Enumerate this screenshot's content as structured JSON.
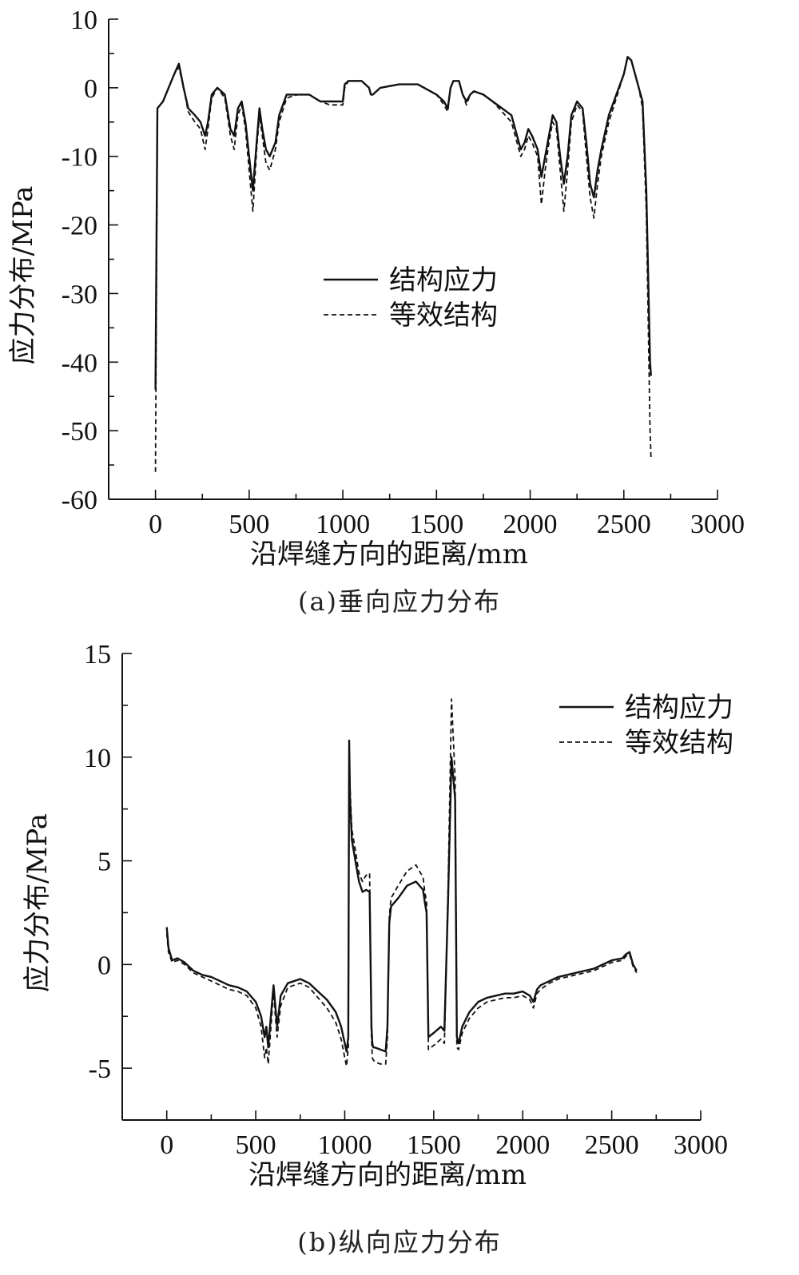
{
  "chart_data": [
    {
      "type": "line",
      "caption": "(a)垂向应力分布",
      "xlabel": "沿焊缝方向的距离/mm",
      "ylabel": "应力分布/MPa",
      "xlim": [
        -250,
        3000
      ],
      "ylim": [
        -60,
        10
      ],
      "xticks": [
        0,
        500,
        1000,
        1500,
        2000,
        2500,
        3000
      ],
      "yticks": [
        10,
        0,
        -10,
        -20,
        -30,
        -40,
        -50,
        -60
      ],
      "legend_position": "center",
      "series": [
        {
          "name": "结构应力",
          "style": "solid",
          "x": [
            0,
            10,
            40,
            70,
            100,
            125,
            150,
            175,
            210,
            240,
            265,
            280,
            300,
            330,
            370,
            400,
            420,
            440,
            460,
            480,
            500,
            520,
            540,
            555,
            570,
            590,
            610,
            640,
            660,
            700,
            760,
            820,
            880,
            930,
            960,
            1000,
            1010,
            1030,
            1060,
            1100,
            1140,
            1150,
            1160,
            1200,
            1300,
            1400,
            1500,
            1540,
            1560,
            1575,
            1590,
            1620,
            1640,
            1660,
            1680,
            1700,
            1750,
            1800,
            1850,
            1900,
            1950,
            1970,
            1990,
            2010,
            2040,
            2060,
            2080,
            2100,
            2120,
            2140,
            2160,
            2180,
            2200,
            2220,
            2250,
            2280,
            2300,
            2320,
            2340,
            2360,
            2380,
            2420,
            2460,
            2500,
            2520,
            2540,
            2560,
            2580,
            2600,
            2620,
            2640,
            2645
          ],
          "y": [
            -44,
            -3,
            -2,
            0,
            2,
            3.5,
            0,
            -3,
            -4,
            -5,
            -7,
            -5,
            -1,
            0,
            -1,
            -6,
            -7,
            -3,
            -2,
            -5,
            -10,
            -15,
            -8,
            -3,
            -6,
            -9,
            -10,
            -8,
            -4,
            -1,
            -1,
            -1,
            -2,
            -2,
            -2,
            -2,
            0.5,
            1,
            1,
            1,
            0,
            -1,
            -1,
            0,
            0.5,
            0.5,
            -1,
            -2,
            -3,
            0,
            1,
            1,
            -1,
            -2,
            -1,
            -0.5,
            -1,
            -2,
            -3,
            -4,
            -9,
            -8,
            -6,
            -7,
            -9,
            -13,
            -10,
            -7,
            -4,
            -5,
            -10,
            -14,
            -10,
            -4,
            -2,
            -3,
            -8,
            -14,
            -16,
            -12,
            -9,
            -4,
            -1,
            2,
            4.5,
            4,
            2,
            0,
            -2,
            -15,
            -40,
            -42
          ]
        },
        {
          "name": "等效结构",
          "style": "dashed",
          "x": [
            0,
            10,
            40,
            70,
            100,
            125,
            150,
            175,
            210,
            240,
            265,
            280,
            300,
            330,
            370,
            400,
            420,
            440,
            460,
            480,
            500,
            520,
            540,
            555,
            570,
            590,
            610,
            640,
            660,
            700,
            760,
            820,
            880,
            930,
            960,
            1000,
            1010,
            1030,
            1060,
            1100,
            1140,
            1150,
            1160,
            1200,
            1300,
            1400,
            1500,
            1540,
            1560,
            1575,
            1590,
            1620,
            1640,
            1660,
            1680,
            1700,
            1750,
            1800,
            1850,
            1900,
            1950,
            1970,
            1990,
            2010,
            2040,
            2060,
            2080,
            2100,
            2120,
            2140,
            2160,
            2180,
            2200,
            2220,
            2250,
            2280,
            2300,
            2320,
            2340,
            2360,
            2380,
            2420,
            2460,
            2500,
            2520,
            2540,
            2560,
            2580,
            2600,
            2620,
            2640,
            2645
          ],
          "y": [
            -56,
            -3,
            -2,
            0,
            2,
            3,
            0,
            -3.5,
            -5,
            -6,
            -9,
            -6,
            -1.5,
            0,
            -1.5,
            -7,
            -9,
            -4,
            -2.5,
            -6,
            -12,
            -18,
            -9,
            -4,
            -7,
            -11,
            -12,
            -9,
            -5,
            -1.5,
            -1,
            -1,
            -2,
            -2.5,
            -2.5,
            -2.5,
            0,
            1,
            1,
            1,
            0,
            -1,
            -1,
            0,
            0.5,
            0.5,
            -1,
            -2.5,
            -3.5,
            0,
            1,
            1,
            -1,
            -2.5,
            -1,
            -0.5,
            -1,
            -2,
            -3.5,
            -5,
            -10,
            -9,
            -7,
            -8,
            -10,
            -17,
            -12,
            -8,
            -5,
            -6,
            -12,
            -18,
            -12,
            -5,
            -2.5,
            -3.5,
            -10,
            -16,
            -19,
            -14,
            -10,
            -5,
            -1.5,
            2,
            4.5,
            4,
            2,
            0,
            -3,
            -18,
            -50,
            -54
          ]
        }
      ]
    },
    {
      "type": "line",
      "caption": "(b)纵向应力分布",
      "xlabel": "沿焊缝方向的距离/mm",
      "ylabel": "应力分布/MPa",
      "xlim": [
        -250,
        3000
      ],
      "ylim": [
        -7.5,
        15
      ],
      "xticks": [
        0,
        500,
        1000,
        1500,
        2000,
        2500,
        3000
      ],
      "yticks": [
        15,
        10,
        5,
        0,
        -5
      ],
      "legend_position": "top-right",
      "series": [
        {
          "name": "结构应力",
          "style": "solid",
          "x": [
            0,
            10,
            30,
            60,
            100,
            150,
            200,
            250,
            300,
            350,
            400,
            450,
            500,
            530,
            550,
            560,
            570,
            590,
            600,
            610,
            620,
            640,
            680,
            750,
            800,
            850,
            900,
            950,
            980,
            1000,
            1010,
            1020,
            1025,
            1030,
            1040,
            1060,
            1080,
            1100,
            1120,
            1140,
            1150,
            1155,
            1160,
            1170,
            1200,
            1230,
            1240,
            1250,
            1260,
            1300,
            1350,
            1400,
            1440,
            1450,
            1460,
            1470,
            1500,
            1540,
            1560,
            1580,
            1600,
            1620,
            1630,
            1640,
            1660,
            1700,
            1750,
            1800,
            1850,
            1900,
            1950,
            2000,
            2040,
            2060,
            2080,
            2100,
            2150,
            2200,
            2300,
            2400,
            2500,
            2560,
            2580,
            2600,
            2620,
            2640
          ],
          "y": [
            1.8,
            0.8,
            0.2,
            0.3,
            0.1,
            -0.3,
            -0.5,
            -0.6,
            -0.8,
            -1,
            -1.1,
            -1.3,
            -1.8,
            -2.5,
            -3.5,
            -3,
            -4,
            -2,
            -1,
            -2,
            -3,
            -1.5,
            -0.9,
            -0.7,
            -0.9,
            -1.3,
            -1.7,
            -2.3,
            -3,
            -3.8,
            -4.2,
            -3.5,
            10.8,
            8,
            6,
            5,
            4,
            3.5,
            3.6,
            3.5,
            -3,
            -3.8,
            -4,
            -4,
            -4.1,
            -4.2,
            -3,
            2,
            2.8,
            3.2,
            3.8,
            4,
            3.6,
            3,
            2.5,
            -3.5,
            -3.3,
            -3,
            -3.2,
            3,
            10,
            8,
            -3.5,
            -3.8,
            -3,
            -2.3,
            -1.8,
            -1.6,
            -1.5,
            -1.4,
            -1.4,
            -1.3,
            -1.5,
            -1.8,
            -1.2,
            -1,
            -0.8,
            -0.6,
            -0.4,
            -0.2,
            0.2,
            0.3,
            0.5,
            0.6,
            0,
            -0.3
          ]
        },
        {
          "name": "等效结构",
          "style": "dashed",
          "x": [
            0,
            10,
            30,
            60,
            100,
            150,
            200,
            250,
            300,
            350,
            400,
            450,
            500,
            530,
            550,
            560,
            570,
            590,
            600,
            610,
            620,
            640,
            680,
            750,
            800,
            850,
            900,
            950,
            980,
            1000,
            1010,
            1020,
            1025,
            1030,
            1040,
            1060,
            1080,
            1100,
            1120,
            1140,
            1150,
            1155,
            1160,
            1170,
            1200,
            1230,
            1240,
            1250,
            1260,
            1300,
            1350,
            1400,
            1440,
            1450,
            1460,
            1470,
            1500,
            1540,
            1560,
            1580,
            1600,
            1620,
            1630,
            1640,
            1660,
            1700,
            1750,
            1800,
            1850,
            1900,
            1950,
            2000,
            2040,
            2060,
            2080,
            2100,
            2150,
            2200,
            2300,
            2400,
            2500,
            2560,
            2580,
            2600,
            2620,
            2640
          ],
          "y": [
            1.5,
            0.6,
            0.1,
            0.2,
            0,
            -0.4,
            -0.6,
            -0.8,
            -1,
            -1.2,
            -1.3,
            -1.5,
            -2.1,
            -3,
            -4.5,
            -4,
            -4.8,
            -2.5,
            -1.2,
            -2.5,
            -3.5,
            -2,
            -1.1,
            -0.9,
            -1.1,
            -1.6,
            -2.1,
            -2.8,
            -3.6,
            -4.5,
            -4.9,
            -4,
            9.5,
            8.5,
            6.5,
            5.5,
            4.4,
            4,
            4.3,
            4.4,
            -3.5,
            -4.5,
            -4.6,
            -4.7,
            -4.8,
            -4.8,
            -3.5,
            2.3,
            3.2,
            3.8,
            4.5,
            4.8,
            4.2,
            3.5,
            3,
            -4.1,
            -3.9,
            -3.6,
            -3.8,
            3.5,
            12.8,
            9,
            -4,
            -4.1,
            -3.3,
            -2.6,
            -2.1,
            -1.8,
            -1.7,
            -1.6,
            -1.6,
            -1.5,
            -1.7,
            -2.1,
            -1.4,
            -1.2,
            -0.9,
            -0.7,
            -0.5,
            -0.3,
            0.1,
            0.2,
            0.4,
            0.5,
            -0.1,
            -0.4
          ]
        }
      ]
    }
  ]
}
